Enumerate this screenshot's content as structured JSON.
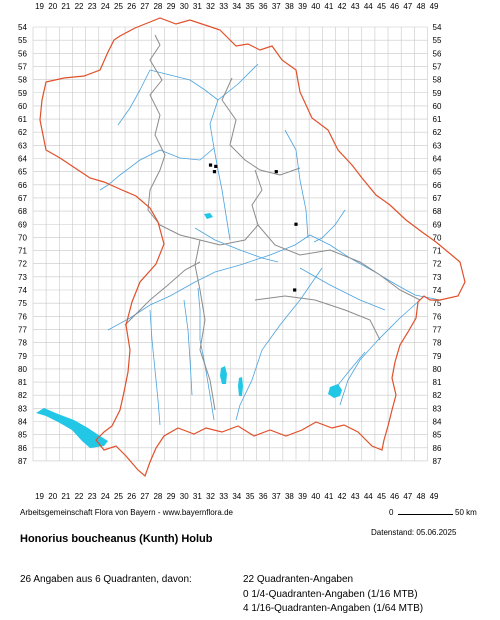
{
  "map": {
    "columns": [
      "19",
      "20",
      "21",
      "22",
      "23",
      "24",
      "25",
      "26",
      "27",
      "28",
      "29",
      "30",
      "31",
      "32",
      "33",
      "34",
      "35",
      "36",
      "37",
      "38",
      "39",
      "40",
      "41",
      "42",
      "43",
      "44",
      "45",
      "46",
      "47",
      "48",
      "49"
    ],
    "rows": [
      "54",
      "55",
      "56",
      "57",
      "58",
      "59",
      "60",
      "61",
      "62",
      "63",
      "64",
      "65",
      "66",
      "67",
      "68",
      "69",
      "70",
      "71",
      "72",
      "73",
      "74",
      "75",
      "76",
      "77",
      "78",
      "79",
      "80",
      "81",
      "82",
      "83",
      "84",
      "85",
      "86",
      "87"
    ],
    "grid_color": "#c8c8c8",
    "state_border_color": "#e0502a",
    "region_border_color": "#8c8c8c",
    "river_color": "#4aa3df",
    "lake_color": "#22c7e6",
    "marker_color": "#000000",
    "occurrences": [
      {
        "col": 32.4,
        "row": 64.6
      },
      {
        "col": 32.0,
        "row": 64.5
      },
      {
        "col": 37.0,
        "row": 65.0
      },
      {
        "col": 38.5,
        "row": 69.0
      },
      {
        "col": 38.4,
        "row": 74.0
      },
      {
        "col": 32.3,
        "row": 65.0
      }
    ]
  },
  "footer": {
    "credit": "Arbeitsgemeinschaft Flora von Bayern - www.bayernflora.de",
    "scale_start": "0",
    "scale_end": "50 km",
    "date": "Datenstand: 05.06.2025",
    "species": "Honorius boucheanus (Kunth) Holub",
    "summary": "26 Angaben aus 6 Quadranten, davon:",
    "quadrant_lines": [
      "22 Quadranten-Angaben",
      "0 1/4-Quadranten-Angaben (1/16 MTB)",
      "4 1/16-Quadranten-Angaben (1/64 MTB)"
    ]
  }
}
